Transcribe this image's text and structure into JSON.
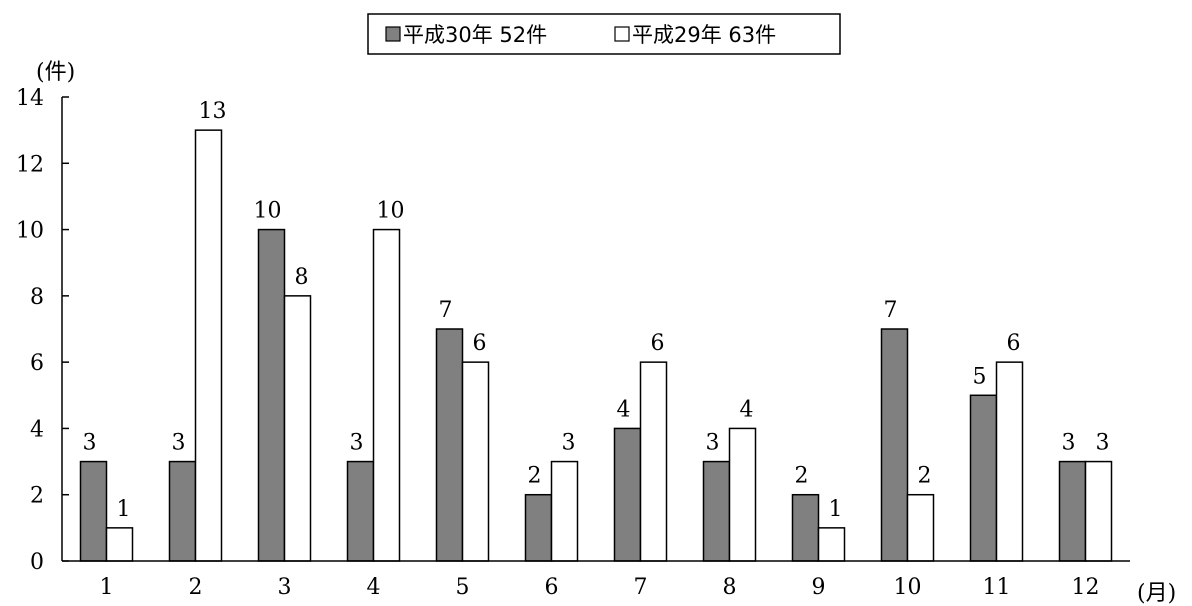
{
  "chart_data": {
    "type": "bar",
    "categories": [
      "1",
      "2",
      "3",
      "4",
      "5",
      "6",
      "7",
      "8",
      "9",
      "10",
      "11",
      "12"
    ],
    "series": [
      {
        "name": "平成30年 52件",
        "values": [
          3,
          3,
          10,
          3,
          7,
          2,
          4,
          3,
          2,
          7,
          5,
          3
        ],
        "color": "#808080"
      },
      {
        "name": "平成29年 63件",
        "values": [
          1,
          13,
          8,
          10,
          6,
          3,
          6,
          4,
          1,
          2,
          6,
          3
        ],
        "color": "#ffffff"
      }
    ],
    "ylabel": "(件)",
    "xlabel": "(月)",
    "ylim": [
      0,
      14
    ],
    "yticks": [
      0,
      2,
      4,
      6,
      8,
      10,
      12,
      14
    ],
    "legend_position": "top-center",
    "grid": false
  }
}
